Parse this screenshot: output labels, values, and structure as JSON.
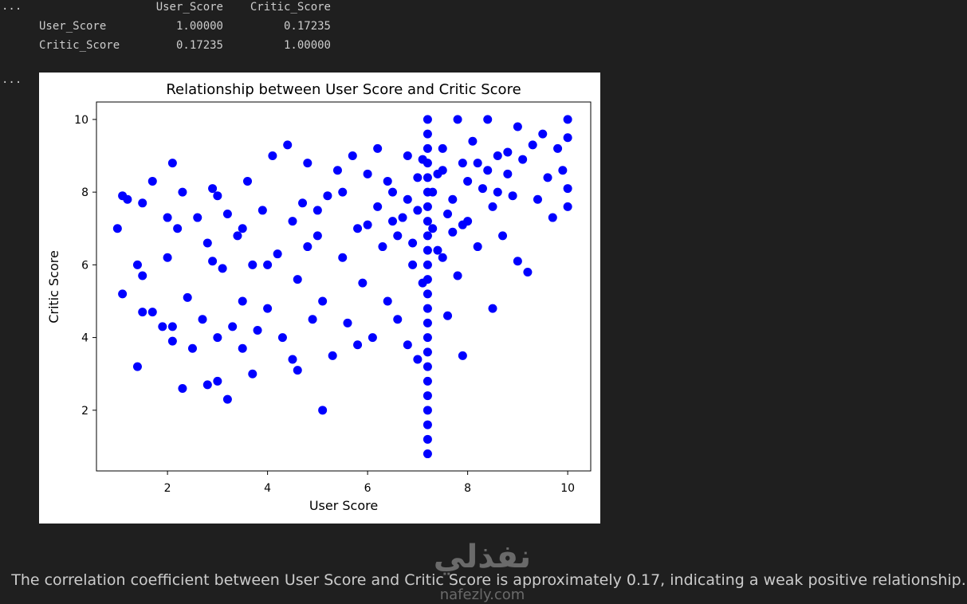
{
  "output_markers": [
    "...",
    "..."
  ],
  "table": {
    "columns": [
      "User_Score",
      "Critic_Score"
    ],
    "rows": [
      {
        "label": "User_Score",
        "values": [
          "1.00000",
          "0.17235"
        ]
      },
      {
        "label": "Critic_Score",
        "values": [
          "0.17235",
          "1.00000"
        ]
      }
    ]
  },
  "chart_data": {
    "type": "scatter",
    "title": "Relationship between User Score and Critic Score",
    "xlabel": "User Score",
    "ylabel": "Critic Score",
    "color": "#0000ff",
    "xlim": [
      0.58,
      10.46
    ],
    "ylim": [
      0.33,
      10.48
    ],
    "xticks": [
      2,
      4,
      6,
      8,
      10
    ],
    "yticks": [
      2,
      4,
      6,
      8,
      10
    ],
    "x": [
      1.0,
      1.1,
      1.2,
      1.1,
      1.4,
      1.5,
      1.4,
      1.5,
      1.7,
      1.5,
      1.7,
      1.9,
      2.0,
      2.0,
      2.1,
      2.1,
      2.1,
      2.2,
      2.3,
      2.3,
      2.4,
      2.5,
      2.6,
      2.7,
      2.8,
      2.8,
      2.9,
      3.0,
      3.0,
      3.0,
      3.1,
      3.2,
      3.3,
      3.4,
      3.5,
      3.5,
      3.6,
      3.7,
      3.7,
      3.8,
      3.9,
      4.0,
      4.1,
      4.2,
      4.3,
      4.4,
      4.5,
      4.6,
      4.6,
      4.7,
      4.8,
      4.9,
      5.0,
      5.1,
      5.1,
      5.2,
      5.3,
      5.4,
      5.5,
      5.6,
      5.7,
      5.8,
      5.9,
      6.0,
      6.0,
      6.1,
      6.2,
      6.3,
      6.4,
      6.5,
      6.6,
      6.7,
      6.8,
      6.8,
      6.9,
      7.0,
      7.0,
      7.1,
      7.2,
      7.2,
      7.2,
      7.2,
      7.2,
      7.2,
      7.2,
      7.2,
      7.2,
      7.2,
      7.2,
      7.2,
      7.2,
      7.2,
      7.2,
      7.2,
      7.2,
      7.2,
      7.2,
      7.2,
      7.2,
      7.2,
      7.2,
      7.2,
      7.3,
      7.4,
      7.5,
      7.5,
      7.6,
      7.7,
      7.8,
      7.8,
      7.9,
      7.9,
      8.0,
      8.1,
      8.2,
      8.3,
      8.4,
      8.5,
      8.5,
      8.6,
      8.7,
      8.8,
      8.9,
      9.0,
      9.0,
      9.1,
      9.2,
      9.3,
      9.4,
      9.5,
      9.6,
      9.7,
      9.8,
      9.9,
      10.0,
      10.0,
      10.0,
      10.0,
      6.5,
      6.8,
      7.0,
      7.3,
      7.6,
      8.0,
      7.7,
      6.6,
      8.2,
      7.9,
      8.4,
      6.2,
      7.1,
      7.4,
      8.6,
      6.9,
      5.8,
      6.4,
      8.8,
      7.5,
      3.2,
      2.9,
      4.5,
      5.5,
      4.0,
      5.0,
      3.5,
      4.8
    ],
    "y": [
      7.0,
      7.9,
      7.8,
      5.2,
      6.0,
      5.7,
      3.2,
      4.7,
      4.7,
      7.7,
      8.3,
      4.3,
      6.2,
      7.3,
      8.8,
      3.9,
      4.3,
      7.0,
      2.6,
      8.0,
      5.1,
      3.7,
      7.3,
      4.5,
      6.6,
      2.7,
      6.1,
      2.8,
      7.9,
      4.0,
      5.9,
      2.3,
      4.3,
      6.8,
      5.0,
      3.7,
      8.3,
      3.0,
      6.0,
      4.2,
      7.5,
      4.8,
      9.0,
      6.3,
      4.0,
      9.3,
      3.4,
      3.1,
      5.6,
      7.7,
      8.8,
      4.5,
      6.8,
      2.0,
      5.0,
      7.9,
      3.5,
      8.6,
      6.2,
      4.4,
      9.0,
      3.8,
      5.5,
      7.1,
      8.5,
      4.0,
      9.2,
      6.5,
      5.0,
      8.0,
      4.5,
      7.3,
      3.8,
      9.0,
      6.0,
      3.4,
      8.4,
      5.5,
      0.8,
      1.2,
      1.6,
      2.0,
      2.4,
      2.8,
      3.2,
      3.6,
      4.0,
      4.4,
      4.8,
      5.2,
      5.6,
      6.0,
      6.4,
      6.8,
      7.2,
      7.6,
      8.0,
      8.4,
      8.8,
      9.2,
      9.6,
      10.0,
      7.0,
      8.5,
      6.2,
      9.2,
      4.6,
      7.8,
      5.7,
      10.0,
      3.5,
      8.8,
      7.2,
      9.4,
      6.5,
      8.1,
      10.0,
      4.8,
      7.6,
      9.0,
      6.8,
      8.5,
      7.9,
      9.8,
      6.1,
      8.9,
      5.8,
      9.3,
      7.8,
      9.6,
      8.4,
      7.3,
      9.2,
      8.6,
      10.0,
      8.1,
      7.6,
      9.5,
      7.2,
      7.8,
      7.5,
      8.0,
      7.4,
      8.3,
      6.9,
      6.8,
      8.8,
      7.1,
      8.6,
      7.6,
      8.9,
      6.4,
      8.0,
      6.6,
      7.0,
      8.3,
      9.1,
      8.6,
      7.4,
      8.1,
      7.2,
      8.0,
      6.0,
      7.5,
      7.0,
      6.5
    ]
  },
  "summary": "The correlation coefficient between User Score and Critic Score is approximately 0.17, indicating a weak positive relationship.",
  "watermark": [
    "نفذلي",
    "nafezly.com"
  ]
}
